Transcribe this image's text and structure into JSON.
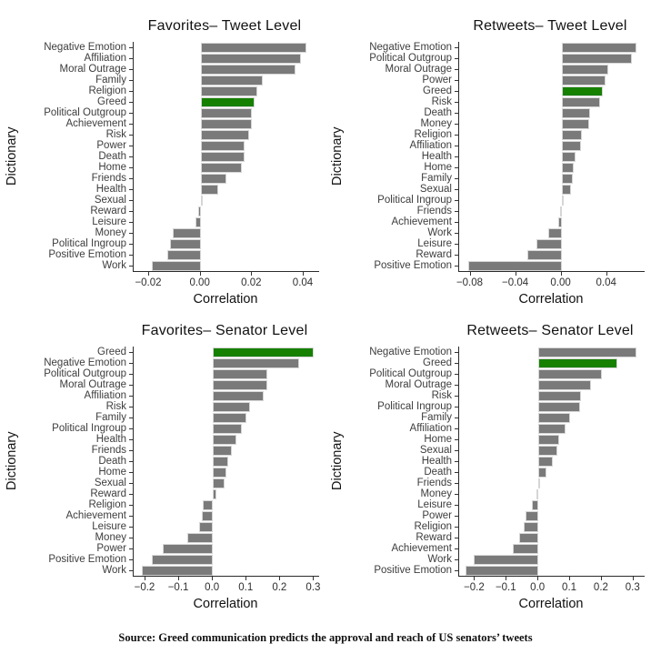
{
  "page": {
    "background": "#ffffff"
  },
  "colors": {
    "bar": "#7a7a7a",
    "bar_border": "#d6d6d6",
    "highlight": "#168000",
    "axis": "#2b2b2b",
    "tick_text": "#2e2e2e"
  },
  "source_note": "Source: Greed communication predicts the approval and reach of US senators’ tweets",
  "chart_data": [
    {
      "type": "bar",
      "orientation": "horizontal",
      "title": "Favorites– Tweet Level",
      "xlabel": "Correlation",
      "ylabel": "Dictionary",
      "xlim": [
        -0.026,
        0.046
      ],
      "xticks": [
        -0.02,
        0.0,
        0.02,
        0.04
      ],
      "xtick_labels": [
        "−0.02",
        "0.00",
        "0.02",
        "0.04"
      ],
      "grid": false,
      "legend": "none",
      "highlight_category": "Greed",
      "categories": [
        "Negative Emotion",
        "Affiliation",
        "Moral Outrage",
        "Family",
        "Religion",
        "Greed",
        "Political Outgroup",
        "Achievement",
        "Risk",
        "Power",
        "Death",
        "Home",
        "Friends",
        "Health",
        "Sexual",
        "Reward",
        "Leisure",
        "Money",
        "Political Ingroup",
        "Positive Emotion",
        "Work"
      ],
      "values": [
        0.041,
        0.039,
        0.037,
        0.024,
        0.022,
        0.021,
        0.02,
        0.02,
        0.019,
        0.017,
        0.017,
        0.016,
        0.01,
        0.007,
        0.001,
        -0.001,
        -0.002,
        -0.011,
        -0.012,
        -0.013,
        -0.019
      ]
    },
    {
      "type": "bar",
      "orientation": "horizontal",
      "title": "Retweets– Tweet Level",
      "xlabel": "Correlation",
      "ylabel": "Dictionary",
      "xlim": [
        -0.09,
        0.073
      ],
      "xticks": [
        -0.08,
        -0.04,
        0.0,
        0.04
      ],
      "xtick_labels": [
        "−0.08",
        "−0.04",
        "0.00",
        "0.04"
      ],
      "grid": false,
      "legend": "none",
      "highlight_category": "Greed",
      "categories": [
        "Negative Emotion",
        "Political Outgroup",
        "Moral Outrage",
        "Power",
        "Greed",
        "Risk",
        "Death",
        "Money",
        "Religion",
        "Affiliation",
        "Health",
        "Home",
        "Family",
        "Sexual",
        "Political Ingroup",
        "Friends",
        "Achievement",
        "Work",
        "Leisure",
        "Reward",
        "Positive Emotion"
      ],
      "values": [
        0.066,
        0.062,
        0.041,
        0.039,
        0.036,
        0.034,
        0.025,
        0.024,
        0.018,
        0.017,
        0.012,
        0.011,
        0.01,
        0.008,
        0.002,
        -0.001,
        -0.003,
        -0.012,
        -0.022,
        -0.03,
        -0.082
      ]
    },
    {
      "type": "bar",
      "orientation": "horizontal",
      "title": "Favorites– Senator Level",
      "xlabel": "Correlation",
      "ylabel": "Dictionary",
      "xlim": [
        -0.235,
        0.315
      ],
      "xticks": [
        -0.2,
        -0.1,
        0.0,
        0.1,
        0.2,
        0.3
      ],
      "xtick_labels": [
        "−0.2",
        "−0.1",
        "0.0",
        "0.1",
        "0.2",
        "0.3"
      ],
      "grid": false,
      "legend": "none",
      "highlight_category": "Greed",
      "categories": [
        "Greed",
        "Negative Emotion",
        "Political Outgroup",
        "Moral Outrage",
        "Affiliation",
        "Risk",
        "Family",
        "Political Ingroup",
        "Health",
        "Friends",
        "Death",
        "Home",
        "Sexual",
        "Reward",
        "Religion",
        "Achievement",
        "Leisure",
        "Money",
        "Power",
        "Positive Emotion",
        "Work"
      ],
      "values": [
        0.3,
        0.255,
        0.16,
        0.16,
        0.15,
        0.11,
        0.1,
        0.085,
        0.07,
        0.055,
        0.045,
        0.04,
        0.035,
        0.01,
        -0.03,
        -0.032,
        -0.042,
        -0.075,
        -0.15,
        -0.18,
        -0.21
      ]
    },
    {
      "type": "bar",
      "orientation": "horizontal",
      "title": "Retweets– Senator Level",
      "xlabel": "Correlation",
      "ylabel": "Dictionary",
      "xlim": [
        -0.25,
        0.335
      ],
      "xticks": [
        -0.2,
        -0.1,
        0.0,
        0.1,
        0.2,
        0.3
      ],
      "xtick_labels": [
        "−0.2",
        "−0.1",
        "0.0",
        "0.1",
        "0.2",
        "0.3"
      ],
      "grid": false,
      "legend": "none",
      "highlight_category": "Greed",
      "categories": [
        "Negative Emotion",
        "Greed",
        "Political Outgroup",
        "Moral Outrage",
        "Risk",
        "Political Ingroup",
        "Family",
        "Affiliation",
        "Home",
        "Sexual",
        "Health",
        "Death",
        "Friends",
        "Money",
        "Leisure",
        "Power",
        "Religion",
        "Reward",
        "Achievement",
        "Work",
        "Positive Emotion"
      ],
      "values": [
        0.31,
        0.25,
        0.2,
        0.165,
        0.135,
        0.13,
        0.1,
        0.085,
        0.065,
        0.06,
        0.045,
        0.025,
        0.002,
        -0.005,
        -0.02,
        -0.04,
        -0.045,
        -0.06,
        -0.08,
        -0.205,
        -0.23
      ]
    }
  ]
}
